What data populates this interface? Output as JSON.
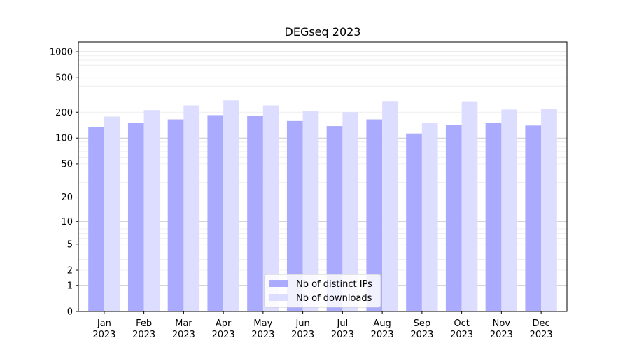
{
  "chart_data": {
    "type": "bar",
    "title": "DEGseq 2023",
    "xlabel": "",
    "ylabel": "",
    "yscale": "log1p",
    "ylim": [
      0,
      1300
    ],
    "yticks": [
      0,
      1,
      2,
      5,
      10,
      20,
      50,
      100,
      200,
      500,
      1000
    ],
    "grid": true,
    "legend_position": "bottom-center",
    "categories": [
      "Jan\n2023",
      "Feb\n2023",
      "Mar\n2023",
      "Apr\n2023",
      "May\n2023",
      "Jun\n2023",
      "Jul\n2023",
      "Aug\n2023",
      "Sep\n2023",
      "Oct\n2023",
      "Nov\n2023",
      "Dec\n2023"
    ],
    "series": [
      {
        "name": "Nb of distinct IPs",
        "color": "#aaaaff",
        "values": [
          135,
          150,
          165,
          185,
          180,
          158,
          138,
          165,
          113,
          143,
          150,
          140
        ]
      },
      {
        "name": "Nb of downloads",
        "color": "#ddddff",
        "values": [
          178,
          212,
          240,
          275,
          240,
          207,
          200,
          270,
          150,
          268,
          215,
          220
        ]
      }
    ]
  }
}
